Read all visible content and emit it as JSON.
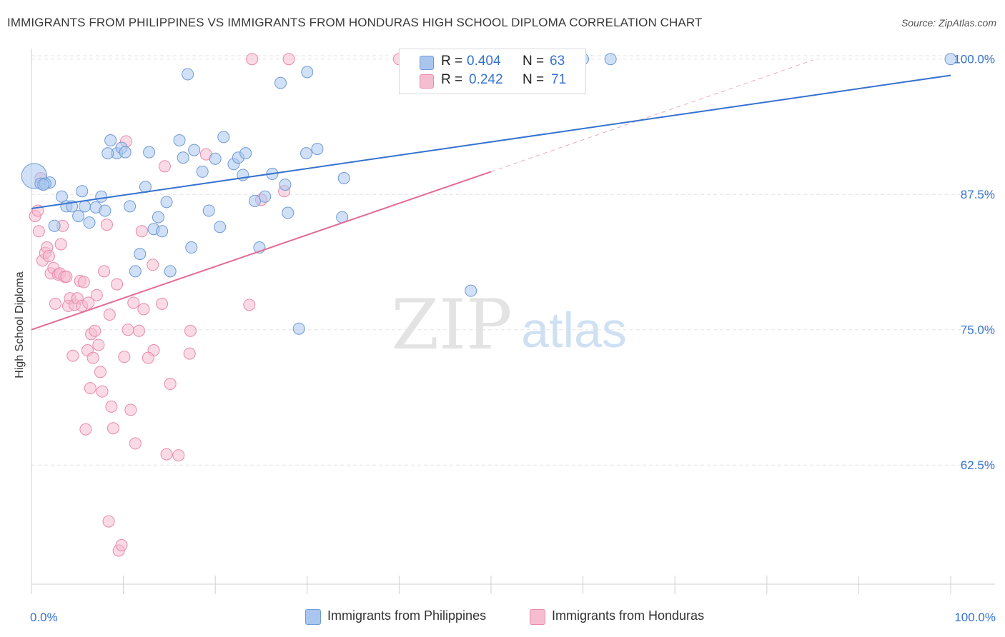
{
  "title": "IMMIGRANTS FROM PHILIPPINES VS IMMIGRANTS FROM HONDURAS HIGH SCHOOL DIPLOMA CORRELATION CHART",
  "source": "Source: ZipAtlas.com",
  "watermark": {
    "zip": "ZIP",
    "atlas": "atlas"
  },
  "colors": {
    "blue_fill": "#a9c6ef",
    "blue_stroke": "#6f9ad6",
    "blue_line": "#3572d0",
    "pink_fill": "#f6bcd0",
    "pink_stroke": "#e88aab",
    "pink_line": "#e46b95",
    "axis_text": "#3572d0",
    "grid": "#e3e3e3"
  },
  "legend_top": {
    "rows": [
      {
        "r_label": "R = ",
        "r_value": "0.404",
        "n_label": "N = ",
        "n_value": "63"
      },
      {
        "r_label": "R = ",
        "r_value": "0.242",
        "n_label": "N = ",
        "n_value": "71"
      }
    ]
  },
  "legend_bottom": [
    "Immigrants from Philippines",
    "Immigrants from Honduras"
  ],
  "chart_data": {
    "type": "scatter",
    "title": "IMMIGRANTS FROM PHILIPPINES VS IMMIGRANTS FROM HONDURAS HIGH SCHOOL DIPLOMA CORRELATION CHART",
    "xlabel": "",
    "ylabel": "High School Diploma",
    "xlim": [
      0,
      100
    ],
    "ylim": [
      51.5,
      101.5
    ],
    "x_tick_labels": [
      "0.0%",
      "100.0%"
    ],
    "y_ticks": [
      62.5,
      75.0,
      87.5,
      100.0
    ],
    "y_tick_labels": [
      "62.5%",
      "75.0%",
      "87.5%",
      "100.0%"
    ],
    "grid": true,
    "legend_position": "top-center",
    "series": [
      {
        "name": "Immigrants from Philippines",
        "trend": {
          "x": [
            0,
            100
          ],
          "y": [
            86.2,
            98.5
          ]
        },
        "points": [
          [
            0.3,
            89.2,
            2.2
          ],
          [
            1.0,
            88.5,
            1
          ],
          [
            2.0,
            88.6,
            1
          ],
          [
            1.5,
            88.5,
            1
          ],
          [
            2.5,
            84.6,
            1
          ],
          [
            3.3,
            87.3,
            1
          ],
          [
            3.8,
            86.4,
            1
          ],
          [
            4.4,
            86.4,
            1
          ],
          [
            5.1,
            85.5,
            1
          ],
          [
            5.5,
            87.8,
            1
          ],
          [
            5.8,
            86.4,
            1
          ],
          [
            6.3,
            84.9,
            1
          ],
          [
            7.0,
            86.3,
            1
          ],
          [
            7.6,
            87.3,
            1
          ],
          [
            8.0,
            86.0,
            1
          ],
          [
            8.6,
            92.5,
            1
          ],
          [
            9.3,
            91.3,
            1
          ],
          [
            9.8,
            91.8,
            1
          ],
          [
            10.2,
            91.4,
            1
          ],
          [
            10.7,
            86.4,
            1
          ],
          [
            11.3,
            80.4,
            1
          ],
          [
            11.8,
            82.0,
            1
          ],
          [
            12.4,
            88.2,
            1
          ],
          [
            12.8,
            91.4,
            1
          ],
          [
            13.3,
            84.3,
            1
          ],
          [
            13.8,
            85.4,
            1
          ],
          [
            14.2,
            84.1,
            1
          ],
          [
            14.7,
            86.8,
            1
          ],
          [
            15.1,
            80.4,
            1
          ],
          [
            16.1,
            92.5,
            1
          ],
          [
            16.5,
            90.9,
            1
          ],
          [
            17.0,
            98.6,
            1
          ],
          [
            17.4,
            82.6,
            1
          ],
          [
            17.7,
            91.6,
            1
          ],
          [
            18.6,
            89.6,
            1
          ],
          [
            19.3,
            86.0,
            1
          ],
          [
            20.0,
            90.8,
            1
          ],
          [
            20.5,
            84.5,
            1
          ],
          [
            20.9,
            92.8,
            1
          ],
          [
            22.0,
            90.3,
            1
          ],
          [
            22.5,
            90.9,
            1
          ],
          [
            23.0,
            89.3,
            1
          ],
          [
            23.3,
            91.3,
            1
          ],
          [
            24.3,
            86.9,
            1
          ],
          [
            24.8,
            82.6,
            1
          ],
          [
            25.4,
            87.3,
            1
          ],
          [
            26.2,
            89.4,
            1
          ],
          [
            27.1,
            97.8,
            1
          ],
          [
            27.6,
            88.4,
            1
          ],
          [
            27.9,
            85.8,
            1
          ],
          [
            29.1,
            75.1,
            1
          ],
          [
            30.0,
            98.8,
            1
          ],
          [
            29.9,
            91.3,
            1
          ],
          [
            31.1,
            91.7,
            1
          ],
          [
            33.8,
            85.4,
            1
          ],
          [
            34.0,
            89.0,
            1
          ],
          [
            41.0,
            99.9,
            1
          ],
          [
            47.8,
            78.6,
            1
          ],
          [
            60.0,
            100.0,
            1
          ],
          [
            63.0,
            100.0,
            1
          ],
          [
            100.0,
            100.0,
            1
          ],
          [
            1.3,
            88.4,
            1
          ],
          [
            8.3,
            91.3,
            1
          ]
        ]
      },
      {
        "name": "Immigrants from Honduras",
        "trend": {
          "x": [
            0,
            50
          ],
          "y": [
            75.0,
            89.6
          ]
        },
        "trend_extension": {
          "x": [
            50,
            85
          ],
          "y": [
            89.6,
            99.9
          ]
        },
        "points": [
          [
            0.4,
            85.5,
            1
          ],
          [
            0.7,
            86.0,
            1
          ],
          [
            0.8,
            84.1,
            1
          ],
          [
            1.2,
            81.4,
            1
          ],
          [
            1.5,
            82.1,
            1
          ],
          [
            1.7,
            82.6,
            1
          ],
          [
            1.9,
            81.8,
            1
          ],
          [
            2.1,
            80.2,
            1
          ],
          [
            2.4,
            80.7,
            1
          ],
          [
            2.6,
            77.4,
            1
          ],
          [
            2.9,
            80.1,
            1
          ],
          [
            3.1,
            80.2,
            1
          ],
          [
            3.2,
            82.9,
            1
          ],
          [
            3.4,
            84.6,
            1
          ],
          [
            3.6,
            79.9,
            1
          ],
          [
            3.8,
            79.9,
            1
          ],
          [
            4.0,
            77.2,
            1
          ],
          [
            4.2,
            77.9,
            1
          ],
          [
            4.5,
            72.6,
            1
          ],
          [
            4.7,
            77.3,
            1
          ],
          [
            5.0,
            77.9,
            1
          ],
          [
            5.3,
            79.5,
            1
          ],
          [
            5.5,
            77.2,
            1
          ],
          [
            5.7,
            79.4,
            1
          ],
          [
            5.9,
            65.8,
            1
          ],
          [
            6.1,
            73.1,
            1
          ],
          [
            6.2,
            77.5,
            1
          ],
          [
            6.4,
            69.6,
            1
          ],
          [
            6.5,
            74.6,
            1
          ],
          [
            6.7,
            72.4,
            1
          ],
          [
            6.9,
            74.9,
            1
          ],
          [
            7.1,
            78.2,
            1
          ],
          [
            7.3,
            73.6,
            1
          ],
          [
            7.5,
            71.1,
            1
          ],
          [
            7.7,
            69.3,
            1
          ],
          [
            7.9,
            80.4,
            1
          ],
          [
            8.2,
            84.7,
            1
          ],
          [
            8.5,
            76.4,
            1
          ],
          [
            8.7,
            67.9,
            1
          ],
          [
            8.9,
            65.9,
            1
          ],
          [
            9.3,
            79.2,
            1
          ],
          [
            9.5,
            54.6,
            1
          ],
          [
            9.8,
            55.1,
            1
          ],
          [
            10.1,
            72.5,
            1
          ],
          [
            10.3,
            92.4,
            1
          ],
          [
            10.5,
            75.0,
            1
          ],
          [
            10.8,
            67.6,
            1
          ],
          [
            11.1,
            77.5,
            1
          ],
          [
            11.3,
            64.5,
            1
          ],
          [
            11.7,
            74.9,
            1
          ],
          [
            12.2,
            76.9,
            1
          ],
          [
            12.0,
            84.1,
            1
          ],
          [
            13.2,
            81.0,
            1
          ],
          [
            13.3,
            73.1,
            1
          ],
          [
            14.2,
            77.4,
            1
          ],
          [
            14.5,
            90.1,
            1
          ],
          [
            14.7,
            63.5,
            1
          ],
          [
            15.1,
            70.0,
            1
          ],
          [
            16.0,
            63.4,
            1
          ],
          [
            17.3,
            74.9,
            1
          ],
          [
            17.2,
            72.8,
            1
          ],
          [
            19.0,
            91.2,
            1
          ],
          [
            23.7,
            77.3,
            1
          ],
          [
            24.0,
            100.0,
            1
          ],
          [
            25.0,
            87.0,
            1
          ],
          [
            27.5,
            87.8,
            1
          ],
          [
            28.0,
            100.0,
            1
          ],
          [
            40.0,
            100.0,
            1
          ],
          [
            8.4,
            57.3,
            1
          ],
          [
            1.0,
            89.0,
            1
          ],
          [
            12.7,
            72.4,
            1
          ]
        ]
      }
    ]
  }
}
